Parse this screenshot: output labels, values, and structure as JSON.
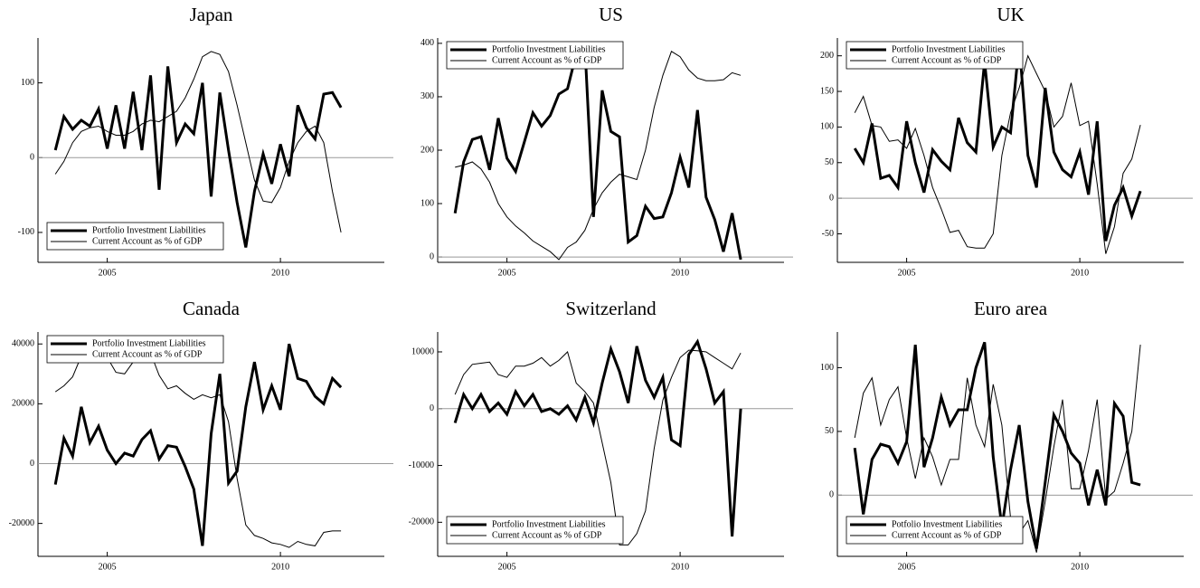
{
  "chart_data": [
    {
      "type": "line",
      "title": "Japan",
      "legend": "lower-left",
      "hline": 0,
      "x": [
        2003.5,
        2003.75,
        2004,
        2004.25,
        2004.5,
        2004.75,
        2005,
        2005.25,
        2005.5,
        2005.75,
        2006,
        2006.25,
        2006.5,
        2006.75,
        2007,
        2007.25,
        2007.5,
        2007.75,
        2008,
        2008.25,
        2008.5,
        2008.75,
        2009,
        2009.25,
        2009.5,
        2009.75,
        2010,
        2010.25,
        2010.5,
        2010.75,
        2011,
        2011.25,
        2011.5,
        2011.75
      ],
      "xlim": [
        2003,
        2013
      ],
      "xticks": [
        2005,
        2010
      ],
      "ylim": [
        -140,
        160
      ],
      "yticks": [
        -100,
        0,
        100
      ],
      "series": [
        {
          "name": "Portfolio Investment Liabilities",
          "color": "#000000",
          "line_width": 3,
          "values": [
            10,
            55,
            38,
            50,
            42,
            65,
            12,
            70,
            12,
            88,
            10,
            110,
            -43,
            122,
            20,
            45,
            32,
            100,
            -52,
            87,
            10,
            -60,
            -120,
            -45,
            5,
            -35,
            18,
            -25,
            70,
            40,
            25,
            85,
            87,
            67
          ]
        },
        {
          "name": "Current Account as % of GDP",
          "color": "#000000",
          "line_width": 1,
          "values": [
            -22,
            -5,
            20,
            35,
            40,
            42,
            35,
            30,
            30,
            35,
            45,
            50,
            48,
            55,
            62,
            80,
            105,
            135,
            142,
            138,
            115,
            70,
            20,
            -30,
            -58,
            -60,
            -40,
            -5,
            20,
            35,
            42,
            20,
            -45,
            -100
          ]
        }
      ]
    },
    {
      "type": "line",
      "title": "US",
      "legend": "upper-left",
      "hline": 0,
      "x": [
        2003.5,
        2003.75,
        2004,
        2004.25,
        2004.5,
        2004.75,
        2005,
        2005.25,
        2005.5,
        2005.75,
        2006,
        2006.25,
        2006.5,
        2006.75,
        2007,
        2007.25,
        2007.5,
        2007.75,
        2008,
        2008.25,
        2008.5,
        2008.75,
        2009,
        2009.25,
        2009.5,
        2009.75,
        2010,
        2010.25,
        2010.5,
        2010.75,
        2011,
        2011.25,
        2011.5,
        2011.75
      ],
      "xlim": [
        2003,
        2013
      ],
      "xticks": [
        2005,
        2010
      ],
      "ylim": [
        -10,
        410
      ],
      "yticks": [
        0,
        100,
        200,
        300,
        400
      ],
      "series": [
        {
          "name": "Portfolio Investment Liabilities",
          "color": "#000000",
          "line_width": 3,
          "values": [
            82,
            178,
            220,
            225,
            163,
            260,
            185,
            160,
            215,
            270,
            245,
            265,
            305,
            315,
            380,
            395,
            75,
            312,
            235,
            225,
            28,
            40,
            95,
            72,
            75,
            120,
            187,
            130,
            275,
            112,
            70,
            10,
            82,
            -5
          ]
        },
        {
          "name": "Current Account as % of GDP",
          "color": "#000000",
          "line_width": 1,
          "values": [
            168,
            172,
            178,
            165,
            140,
            100,
            75,
            58,
            45,
            30,
            20,
            10,
            -5,
            18,
            28,
            50,
            90,
            120,
            140,
            155,
            150,
            145,
            200,
            280,
            340,
            385,
            375,
            350,
            335,
            330,
            330,
            332,
            345,
            340
          ]
        }
      ]
    },
    {
      "type": "line",
      "title": "UK",
      "legend": "upper-left",
      "hline": 0,
      "x": [
        2003.5,
        2003.75,
        2004,
        2004.25,
        2004.5,
        2004.75,
        2005,
        2005.25,
        2005.5,
        2005.75,
        2006,
        2006.25,
        2006.5,
        2006.75,
        2007,
        2007.25,
        2007.5,
        2007.75,
        2008,
        2008.25,
        2008.5,
        2008.75,
        2009,
        2009.25,
        2009.5,
        2009.75,
        2010,
        2010.25,
        2010.5,
        2010.75,
        2011,
        2011.25,
        2011.5,
        2011.75
      ],
      "xlim": [
        2003,
        2013
      ],
      "xticks": [
        2005,
        2010
      ],
      "ylim": [
        -90,
        225
      ],
      "yticks": [
        -50,
        0,
        50,
        100,
        150,
        200
      ],
      "series": [
        {
          "name": "Portfolio Investment Liabilities",
          "color": "#000000",
          "line_width": 3,
          "values": [
            70,
            50,
            105,
            28,
            32,
            15,
            108,
            50,
            8,
            68,
            52,
            40,
            113,
            78,
            65,
            192,
            72,
            100,
            92,
            218,
            60,
            15,
            155,
            65,
            40,
            30,
            65,
            5,
            108,
            -60,
            -10,
            15,
            -25,
            10
          ]
        },
        {
          "name": "Current Account as % of GDP",
          "color": "#000000",
          "line_width": 1,
          "values": [
            120,
            143,
            102,
            100,
            80,
            82,
            70,
            98,
            60,
            15,
            -15,
            -48,
            -45,
            -68,
            -70,
            -70,
            -50,
            60,
            120,
            155,
            200,
            175,
            150,
            100,
            115,
            162,
            102,
            108,
            20,
            -78,
            -40,
            35,
            55,
            103
          ]
        }
      ]
    },
    {
      "type": "line",
      "title": "Canada",
      "legend": "upper-left",
      "hline": 0,
      "x": [
        2003.5,
        2003.75,
        2004,
        2004.25,
        2004.5,
        2004.75,
        2005,
        2005.25,
        2005.5,
        2005.75,
        2006,
        2006.25,
        2006.5,
        2006.75,
        2007,
        2007.25,
        2007.5,
        2007.75,
        2008,
        2008.25,
        2008.5,
        2008.75,
        2009,
        2009.25,
        2009.5,
        2009.75,
        2010,
        2010.25,
        2010.5,
        2010.75,
        2011,
        2011.25,
        2011.5,
        2011.75
      ],
      "xlim": [
        2003,
        2013
      ],
      "xticks": [
        2005,
        2010
      ],
      "ylim": [
        -31000,
        44000
      ],
      "yticks": [
        -20000,
        0,
        20000,
        40000
      ],
      "series": [
        {
          "name": "Portfolio Investment Liabilities",
          "color": "#000000",
          "line_width": 3,
          "values": [
            -7000,
            8500,
            2500,
            19000,
            7000,
            12500,
            4500,
            0,
            3500,
            2500,
            8000,
            11000,
            1500,
            6000,
            5500,
            -1000,
            -8500,
            -27500,
            10000,
            30000,
            -6500,
            -2500,
            19000,
            34000,
            18000,
            26000,
            18000,
            40000,
            28500,
            27500,
            22500,
            20000,
            28500,
            25500
          ]
        },
        {
          "name": "Current Account as % of GDP",
          "color": "#000000",
          "line_width": 1,
          "values": [
            24000,
            26000,
            29000,
            36000,
            38000,
            36500,
            35500,
            30500,
            30000,
            34000,
            38000,
            37000,
            29500,
            25000,
            26000,
            23500,
            21500,
            23000,
            22000,
            23000,
            14000,
            -5000,
            -20500,
            -24000,
            -25000,
            -26500,
            -27000,
            -28000,
            -26000,
            -27000,
            -27500,
            -23000,
            -22500,
            -22500
          ]
        }
      ]
    },
    {
      "type": "line",
      "title": "Switzerland",
      "legend": "lower-left",
      "hline": 0,
      "x": [
        2003.5,
        2003.75,
        2004,
        2004.25,
        2004.5,
        2004.75,
        2005,
        2005.25,
        2005.5,
        2005.75,
        2006,
        2006.25,
        2006.5,
        2006.75,
        2007,
        2007.25,
        2007.5,
        2007.75,
        2008,
        2008.25,
        2008.5,
        2008.75,
        2009,
        2009.25,
        2009.5,
        2009.75,
        2010,
        2010.25,
        2010.5,
        2010.75,
        2011,
        2011.25,
        2011.5,
        2011.75
      ],
      "xlim": [
        2003,
        2013
      ],
      "xticks": [
        2005,
        2010
      ],
      "ylim": [
        -26000,
        13500
      ],
      "yticks": [
        -20000,
        -10000,
        0,
        10000
      ],
      "series": [
        {
          "name": "Portfolio Investment Liabilities",
          "color": "#000000",
          "line_width": 3,
          "values": [
            -2500,
            2500,
            0,
            2500,
            -500,
            1000,
            -1000,
            3000,
            500,
            2500,
            -500,
            0,
            -1000,
            500,
            -2000,
            2000,
            -2500,
            4500,
            10500,
            6500,
            1000,
            11000,
            5000,
            2000,
            5500,
            -5500,
            -6500,
            9500,
            11800,
            7000,
            1000,
            3000,
            -22500,
            0
          ]
        },
        {
          "name": "Current Account as % of GDP",
          "color": "#000000",
          "line_width": 1,
          "values": [
            2500,
            6000,
            7800,
            8000,
            8200,
            6000,
            5500,
            7500,
            7500,
            8000,
            9000,
            7500,
            8500,
            10000,
            4500,
            3000,
            1000,
            -6000,
            -13000,
            -24000,
            -24000,
            -22000,
            -18000,
            -7000,
            1500,
            5500,
            9000,
            10300,
            10200,
            10000,
            9000,
            8000,
            7000,
            9800
          ]
        }
      ]
    },
    {
      "type": "line",
      "title": "Euro area",
      "legend": "lower-left",
      "hline": 0,
      "x": [
        2003.5,
        2003.75,
        2004,
        2004.25,
        2004.5,
        2004.75,
        2005,
        2005.25,
        2005.5,
        2005.75,
        2006,
        2006.25,
        2006.5,
        2006.75,
        2007,
        2007.25,
        2007.5,
        2007.75,
        2008,
        2008.25,
        2008.5,
        2008.75,
        2009,
        2009.25,
        2009.5,
        2009.75,
        2010,
        2010.25,
        2010.5,
        2010.75,
        2011,
        2011.25,
        2011.5,
        2011.75
      ],
      "xlim": [
        2003,
        2013
      ],
      "xticks": [
        2005,
        2010
      ],
      "ylim": [
        -48,
        128
      ],
      "yticks": [
        0,
        50,
        100
      ],
      "series": [
        {
          "name": "Potfolio Investment Liabilities",
          "color": "#000000",
          "line_width": 3,
          "values": [
            37,
            -15,
            28,
            40,
            38,
            25,
            42,
            118,
            22,
            45,
            77,
            55,
            67,
            67,
            100,
            120,
            30,
            -25,
            20,
            55,
            -5,
            -42,
            10,
            63,
            50,
            33,
            25,
            -8,
            20,
            -8,
            72,
            62,
            10,
            8
          ]
        },
        {
          "name": "Current Account as % of GDP",
          "color": "#000000",
          "line_width": 1,
          "values": [
            45,
            80,
            92,
            55,
            75,
            85,
            45,
            13,
            45,
            30,
            8,
            28,
            28,
            92,
            55,
            38,
            87,
            55,
            -18,
            -30,
            -20,
            -45,
            -5,
            38,
            75,
            5,
            5,
            35,
            75,
            -3,
            3,
            25,
            50,
            118
          ]
        }
      ]
    }
  ]
}
